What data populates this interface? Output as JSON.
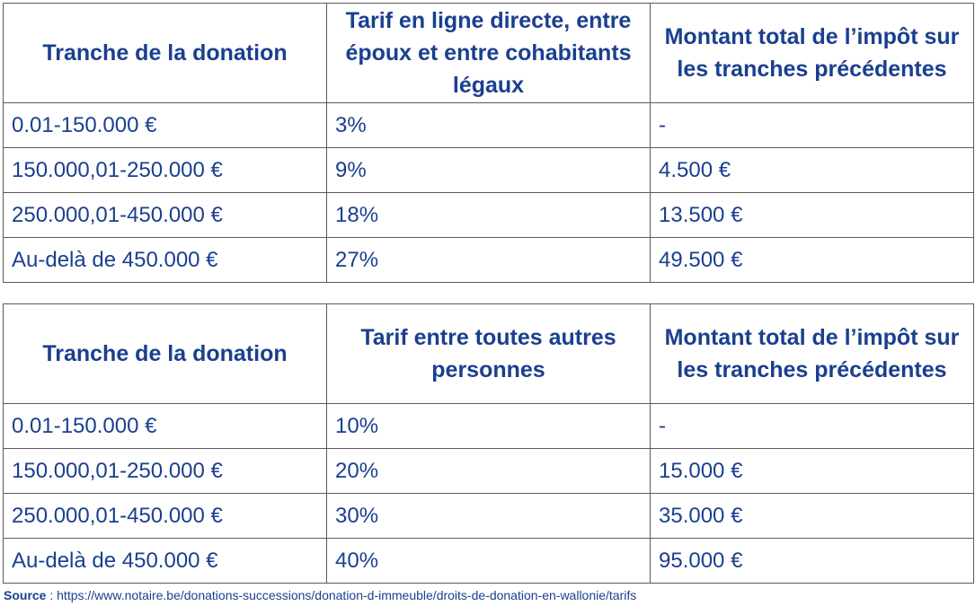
{
  "tables": [
    {
      "headers": [
        "Tranche de la donation",
        "Tarif en ligne directe, entre époux et entre cohabitants légaux",
        "Montant total de l’impôt sur les tranches précédentes"
      ],
      "rows": [
        [
          "0.01-150.000 €",
          "3%",
          "-"
        ],
        [
          "150.000,01-250.000 €",
          "9%",
          "4.500 €"
        ],
        [
          "250.000,01-450.000 €",
          "18%",
          "13.500 €"
        ],
        [
          "Au-delà de 450.000 €",
          "27%",
          "49.500 €"
        ]
      ]
    },
    {
      "headers": [
        "Tranche de la donation",
        "Tarif entre toutes autres personnes",
        "Montant total de l’impôt sur les tranches précédentes"
      ],
      "rows": [
        [
          "0.01-150.000 €",
          "10%",
          "-"
        ],
        [
          "150.000,01-250.000 €",
          "20%",
          "15.000 €"
        ],
        [
          "250.000,01-450.000 €",
          "30%",
          "35.000 €"
        ],
        [
          "Au-delà de 450.000 €",
          "40%",
          "95.000 €"
        ]
      ]
    }
  ],
  "source": {
    "label": "Source",
    "separator": " : ",
    "url": "https://www.notaire.be/donations-successions/donation-d-immeuble/droits-de-donation-en-wallonie/tarifs"
  },
  "colors": {
    "text": "#1a3f8f",
    "border": "#5a5a5a",
    "background": "#ffffff"
  }
}
